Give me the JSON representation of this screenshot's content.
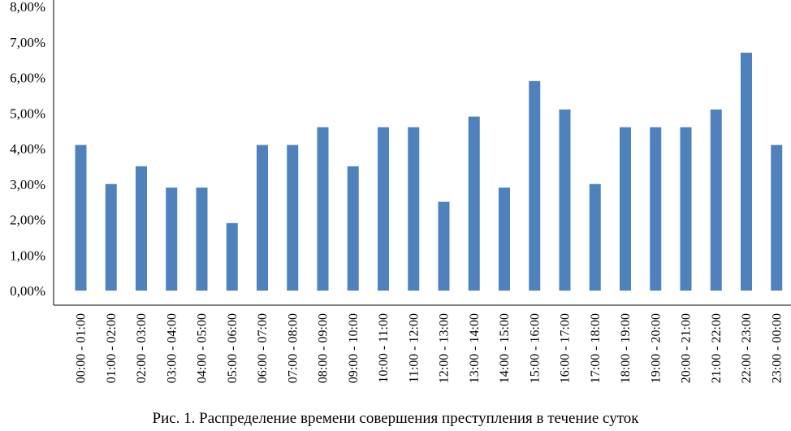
{
  "chart_data": {
    "type": "bar",
    "categories": [
      "00:00 - 01:00",
      "01:00 - 02:00",
      "02:00 - 03:00",
      "03:00 - 04:00",
      "04:00 - 05:00",
      "05:00 - 06:00",
      "06:00 - 07:00",
      "07:00 - 08:00",
      "08:00 - 09:00",
      "09:00 - 10:00",
      "10:00 - 11:00",
      "11:00 - 12:00",
      "12:00 - 13:00",
      "13:00 - 14:00",
      "14:00 - 15:00",
      "15:00 - 16:00",
      "16:00 - 17:00",
      "17:00 - 18:00",
      "18:00 - 19:00",
      "19:00 - 20:00",
      "20:00 - 21:00",
      "21:00 - 22:00",
      "22:00 - 23:00",
      "23:00 - 00:00"
    ],
    "values": [
      4.1,
      3.0,
      3.5,
      2.9,
      2.9,
      1.9,
      4.1,
      4.1,
      4.6,
      3.5,
      4.6,
      4.6,
      2.5,
      4.9,
      2.9,
      5.9,
      5.1,
      3.0,
      4.6,
      4.6,
      4.6,
      5.1,
      6.7,
      4.1
    ],
    "ylim": [
      0,
      8
    ],
    "yticks": [
      "0,00%",
      "1,00%",
      "2,00%",
      "3,00%",
      "4,00%",
      "5,00%",
      "6,00%",
      "7,00%",
      "8,00%"
    ],
    "title": "",
    "xlabel": "",
    "ylabel": "",
    "grid": false,
    "bar_color": "#4f81bd"
  },
  "caption": "Рис. 1. Распределение времени совершения преступления в течение суток"
}
